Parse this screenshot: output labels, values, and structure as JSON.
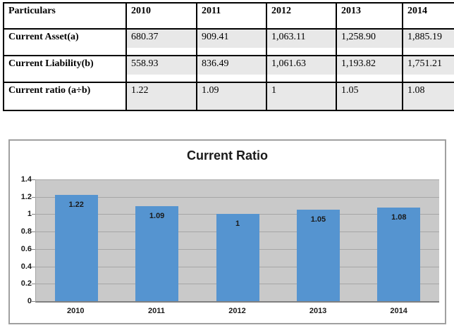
{
  "table": {
    "columns": [
      "Particulars",
      "2010",
      "2011",
      "2012",
      "2013",
      "2014"
    ],
    "rows": [
      {
        "label": "Current Asset(a)",
        "values": [
          "680.37",
          "909.41",
          "1,063.11",
          "1,258.90",
          "1,885.19"
        ]
      },
      {
        "label": "Current Liability(b)",
        "values": [
          "558.93",
          "836.49",
          "1,061.63",
          "1,193.82",
          "1,751.21"
        ]
      },
      {
        "label": "Current ratio (a÷b)",
        "values": [
          "1.22",
          "1.09",
          "1",
          "1.05",
          "1.08"
        ]
      }
    ]
  },
  "chart_data": {
    "type": "bar",
    "title": "Current Ratio",
    "categories": [
      "2010",
      "2011",
      "2012",
      "2013",
      "2014"
    ],
    "values": [
      1.22,
      1.09,
      1,
      1.05,
      1.08
    ],
    "value_labels": [
      "1.22",
      "1.09",
      "1",
      "1.05",
      "1.08"
    ],
    "xlabel": "",
    "ylabel": "",
    "ylim": [
      0,
      1.4
    ],
    "ytick_labels": [
      "1.4",
      "1.2",
      "1",
      "0.8",
      "0.6",
      "0.4",
      "0.2",
      "0"
    ],
    "ytick_values": [
      1.4,
      1.2,
      1,
      0.8,
      0.6,
      0.4,
      0.2,
      0
    ],
    "grid": "horizontal",
    "legend": "none",
    "colors": {
      "bar": "#5594D0",
      "plot_background": "#C9C9C9",
      "gridline": "#A6A6A6",
      "frame_border": "#A0A0A0",
      "table_shading": "#E8E8E8"
    }
  }
}
